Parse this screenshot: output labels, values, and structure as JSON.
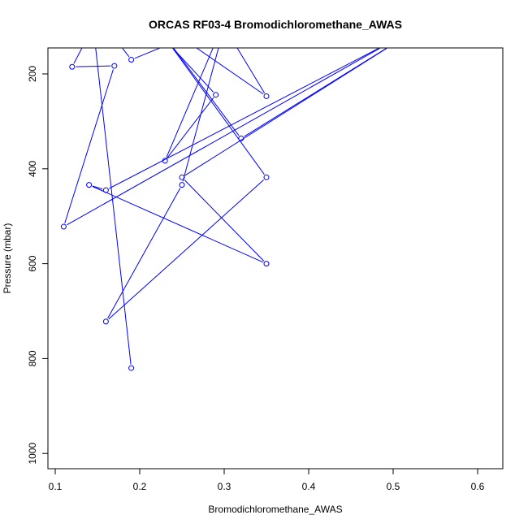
{
  "chart_data": {
    "type": "line",
    "title": "ORCAS RF03-4 Bromodichloromethane_AWAS",
    "xlabel": "Bromodichloromethane_AWAS",
    "ylabel": "Pressure (mbar)",
    "xlim": [
      0.1,
      0.6
    ],
    "ylim": [
      1000,
      150
    ],
    "y_reversed": true,
    "x_ticks": [
      0.1,
      0.2,
      0.3,
      0.4,
      0.5,
      0.6
    ],
    "y_ticks": [
      200,
      400,
      600,
      800,
      1000
    ],
    "series_color": "#0000ff",
    "marker": "open-circle",
    "series": [
      {
        "points": [
          {
            "x": 0.19,
            "y": 820
          },
          {
            "x": 0.145,
            "y": 100
          },
          {
            "x": 0.12,
            "y": 185
          },
          {
            "x": 0.17,
            "y": 183
          },
          {
            "x": 0.11,
            "y": 522
          },
          {
            "x": 0.5,
            "y": 130
          },
          {
            "x": 0.16,
            "y": 445
          },
          {
            "x": 0.14,
            "y": 434
          },
          {
            "x": 0.35,
            "y": 600
          },
          {
            "x": 0.25,
            "y": 418
          },
          {
            "x": 0.52,
            "y": 115
          },
          {
            "x": 0.32,
            "y": 336
          },
          {
            "x": 0.2,
            "y": 50
          },
          {
            "x": 0.35,
            "y": 418
          },
          {
            "x": 0.16,
            "y": 722
          },
          {
            "x": 0.25,
            "y": 434
          },
          {
            "x": 0.3,
            "y": 100
          },
          {
            "x": 0.35,
            "y": 247
          },
          {
            "x": 0.19,
            "y": 50
          },
          {
            "x": 0.29,
            "y": 244
          },
          {
            "x": 0.23,
            "y": 383
          },
          {
            "x": 0.3,
            "y": 90
          },
          {
            "x": 0.19,
            "y": 170
          },
          {
            "x": 0.16,
            "y": 100
          }
        ]
      }
    ]
  }
}
